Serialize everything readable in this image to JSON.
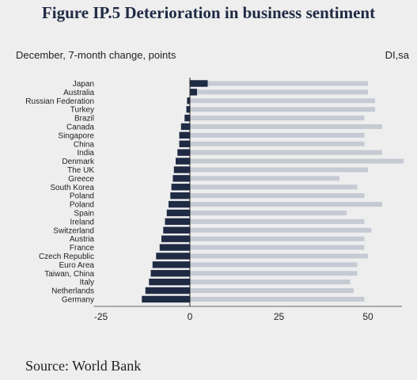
{
  "title": "Figure IP.5  Deterioration in business sentiment",
  "subtitle": "December, 7-month change, points",
  "units": "DI,sa",
  "source": "Source:  World Bank",
  "colors": {
    "change_bar": "#1f2a44",
    "level_bar": "#c5cad3",
    "background": "#eeeeee"
  },
  "chart_data": {
    "type": "bar",
    "orientation": "horizontal",
    "categories": [
      "Japan",
      "Australia",
      "Russian Federation",
      "Turkey",
      "Brazil",
      "Canada",
      "Singapore",
      "China",
      "India",
      "Denmark",
      "The UK",
      "Greece",
      "South Korea",
      "Poland",
      "Poland",
      "Spain",
      "Ireland",
      "Switzerland",
      "Austria",
      "France",
      "Czech Republic",
      "Euro Area",
      "Taiwan, China",
      "Italy",
      "Netherlands",
      "Germany"
    ],
    "series": [
      {
        "color": "#1f2a44",
        "values": [
          5,
          2,
          -0.8,
          -1,
          -1.5,
          -2.5,
          -3,
          -3,
          -3.5,
          -4,
          -4.5,
          -4.8,
          -5.2,
          -5.5,
          -6,
          -6.5,
          -7,
          -7.5,
          -8,
          -8.5,
          -9.5,
          -10.5,
          -11,
          -11.5,
          -12.5,
          -13.5
        ]
      },
      {
        "color": "#c5cad3",
        "values": [
          50,
          50,
          52,
          52,
          49,
          54,
          49,
          49,
          54,
          60,
          50,
          42,
          47,
          49,
          54,
          44,
          49,
          51,
          49,
          49,
          50,
          47,
          47,
          45,
          46,
          49
        ]
      }
    ],
    "xlim": [
      -27,
      60
    ],
    "xticks": [
      -25,
      0,
      25,
      50
    ],
    "xlabel": "",
    "ylabel": "",
    "grid": false
  }
}
